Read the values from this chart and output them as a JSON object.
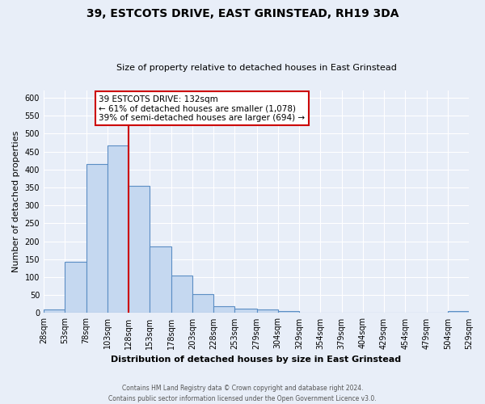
{
  "title": "39, ESTCOTS DRIVE, EAST GRINSTEAD, RH19 3DA",
  "subtitle": "Size of property relative to detached houses in East Grinstead",
  "xlabel": "Distribution of detached houses by size in East Grinstead",
  "ylabel": "Number of detached properties",
  "bin_edges": [
    28,
    53,
    78,
    103,
    128,
    153,
    178,
    203,
    228,
    253,
    279,
    304,
    329,
    354,
    379,
    404,
    429,
    454,
    479,
    504,
    529
  ],
  "bar_heights": [
    10,
    143,
    415,
    466,
    355,
    186,
    104,
    53,
    18,
    13,
    11,
    5,
    2,
    1,
    1,
    0,
    0,
    0,
    0,
    5
  ],
  "bar_color": "#c5d8f0",
  "bar_edge_color": "#5b8ec4",
  "vline_x": 128,
  "vline_color": "#cc0000",
  "ylim": [
    0,
    620
  ],
  "yticks": [
    0,
    50,
    100,
    150,
    200,
    250,
    300,
    350,
    400,
    450,
    500,
    550,
    600
  ],
  "annotation_title": "39 ESTCOTS DRIVE: 132sqm",
  "annotation_line1": "← 61% of detached houses are smaller (1,078)",
  "annotation_line2": "39% of semi-detached houses are larger (694) →",
  "annotation_box_facecolor": "#ffffff",
  "annotation_box_edgecolor": "#cc0000",
  "footer_line1": "Contains HM Land Registry data © Crown copyright and database right 2024.",
  "footer_line2": "Contains public sector information licensed under the Open Government Licence v3.0.",
  "background_color": "#e8eef8",
  "plot_background": "#e8eef8",
  "grid_color": "#ffffff",
  "title_fontsize": 10,
  "subtitle_fontsize": 8,
  "xlabel_fontsize": 8,
  "ylabel_fontsize": 8,
  "tick_fontsize": 7
}
